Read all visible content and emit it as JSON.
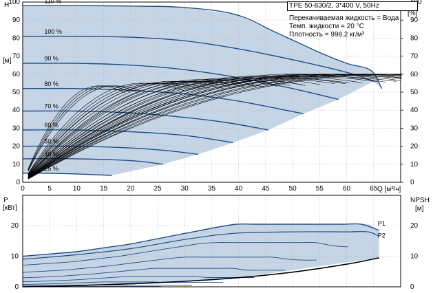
{
  "header": {
    "model": "TPE 50-830/2, 3*400 V, 50Hz",
    "liquid": "Перекачиваемая жидкость = Вода",
    "temp": "Темп. жидкости = 20 °C",
    "density": "Плотность = 998.2 кг/м³"
  },
  "colors": {
    "curve": "#1f4e86",
    "fill": "#c6d5e6",
    "eff": "#000000",
    "grid": "#b0b0b0"
  },
  "chart_data": [
    {
      "type": "line",
      "name": "head",
      "ylabel_left": "H",
      "yunit_left": "[м]",
      "ylabel_right": "eta",
      "yunit_right": "[%]",
      "xlabel": "Q [м³/ч]",
      "xlim": [
        0,
        70
      ],
      "ylim": [
        0,
        100
      ],
      "xticks": [
        0,
        5,
        10,
        15,
        20,
        25,
        30,
        35,
        40,
        45,
        50,
        55,
        60,
        65
      ],
      "yticks": [
        0,
        10,
        20,
        30,
        40,
        50,
        60,
        70,
        80,
        90,
        100
      ],
      "speed_labels": [
        "110 %",
        "100 %",
        "90 %",
        "80 %",
        "70 %",
        "60 %",
        "50 %",
        "40 %",
        "25 %"
      ],
      "series": [
        {
          "name": "110 %",
          "x": [
            0,
            10,
            20,
            30,
            39.5,
            47,
            55,
            60,
            64.5,
            66.5
          ],
          "y": [
            98,
            98,
            97.8,
            97,
            93,
            83,
            72,
            66,
            62,
            52
          ]
        },
        {
          "name": "100 %",
          "x": [
            0,
            10,
            20,
            30,
            40,
            50,
            60,
            65
          ],
          "y": [
            81,
            81,
            80.5,
            78.5,
            74,
            68,
            61,
            56
          ]
        },
        {
          "name": "90 %",
          "x": [
            0,
            10,
            20,
            30,
            40,
            50,
            58.5
          ],
          "y": [
            66,
            66,
            65,
            62.5,
            58,
            52,
            46
          ]
        },
        {
          "name": "80 %",
          "x": [
            0,
            10,
            20,
            30,
            40,
            52
          ],
          "y": [
            52,
            52,
            51,
            49,
            45,
            38
          ]
        },
        {
          "name": "70 %",
          "x": [
            0,
            10,
            20,
            30,
            38,
            45.5
          ],
          "y": [
            39.5,
            39.5,
            38.5,
            36,
            33,
            29
          ]
        },
        {
          "name": "60 %",
          "x": [
            0,
            10,
            20,
            30,
            39
          ],
          "y": [
            29,
            29,
            28,
            26,
            22
          ]
        },
        {
          "name": "50 %",
          "x": [
            0,
            10,
            20,
            27,
            32.5
          ],
          "y": [
            20,
            20,
            19,
            17.5,
            15.5
          ]
        },
        {
          "name": "40 %",
          "x": [
            0,
            10,
            20,
            26
          ],
          "y": [
            13,
            13,
            12,
            10
          ]
        },
        {
          "name": "25 %",
          "x": [
            0,
            5,
            10,
            16.5
          ],
          "y": [
            5,
            5,
            4.6,
            3.8
          ]
        }
      ],
      "eff_peak": [
        60,
        60,
        60,
        59,
        58,
        57,
        56,
        55,
        53.5,
        52
      ]
    },
    {
      "type": "line",
      "name": "power",
      "ylabel_left": "P",
      "yunit_left": "[кВт]",
      "ylabel_right": "NPSH",
      "yunit_right": "[м]",
      "xlim": [
        0,
        70
      ],
      "ylim": [
        0,
        25
      ],
      "yticks": [
        0,
        10,
        20
      ],
      "labels": [
        "P1",
        "P2"
      ],
      "series": [
        {
          "name": "P1",
          "x": [
            0,
            10,
            20,
            30,
            39,
            50,
            60,
            64,
            66
          ],
          "y": [
            10,
            11.5,
            14,
            17.5,
            20.5,
            20.5,
            20.5,
            20.5,
            18.5
          ]
        },
        {
          "name": "P2",
          "x": [
            0,
            10,
            20,
            30,
            39,
            50,
            60,
            64,
            66
          ],
          "y": [
            9,
            10.5,
            12.5,
            15.5,
            17.5,
            18,
            18,
            18,
            16.5
          ]
        },
        {
          "name": "NPSH",
          "x": [
            0,
            10,
            20,
            30,
            40,
            50,
            60,
            66
          ],
          "y": [
            0,
            0.4,
            1,
            1.8,
            3,
            4.8,
            7.4,
            9.5
          ]
        }
      ]
    }
  ]
}
